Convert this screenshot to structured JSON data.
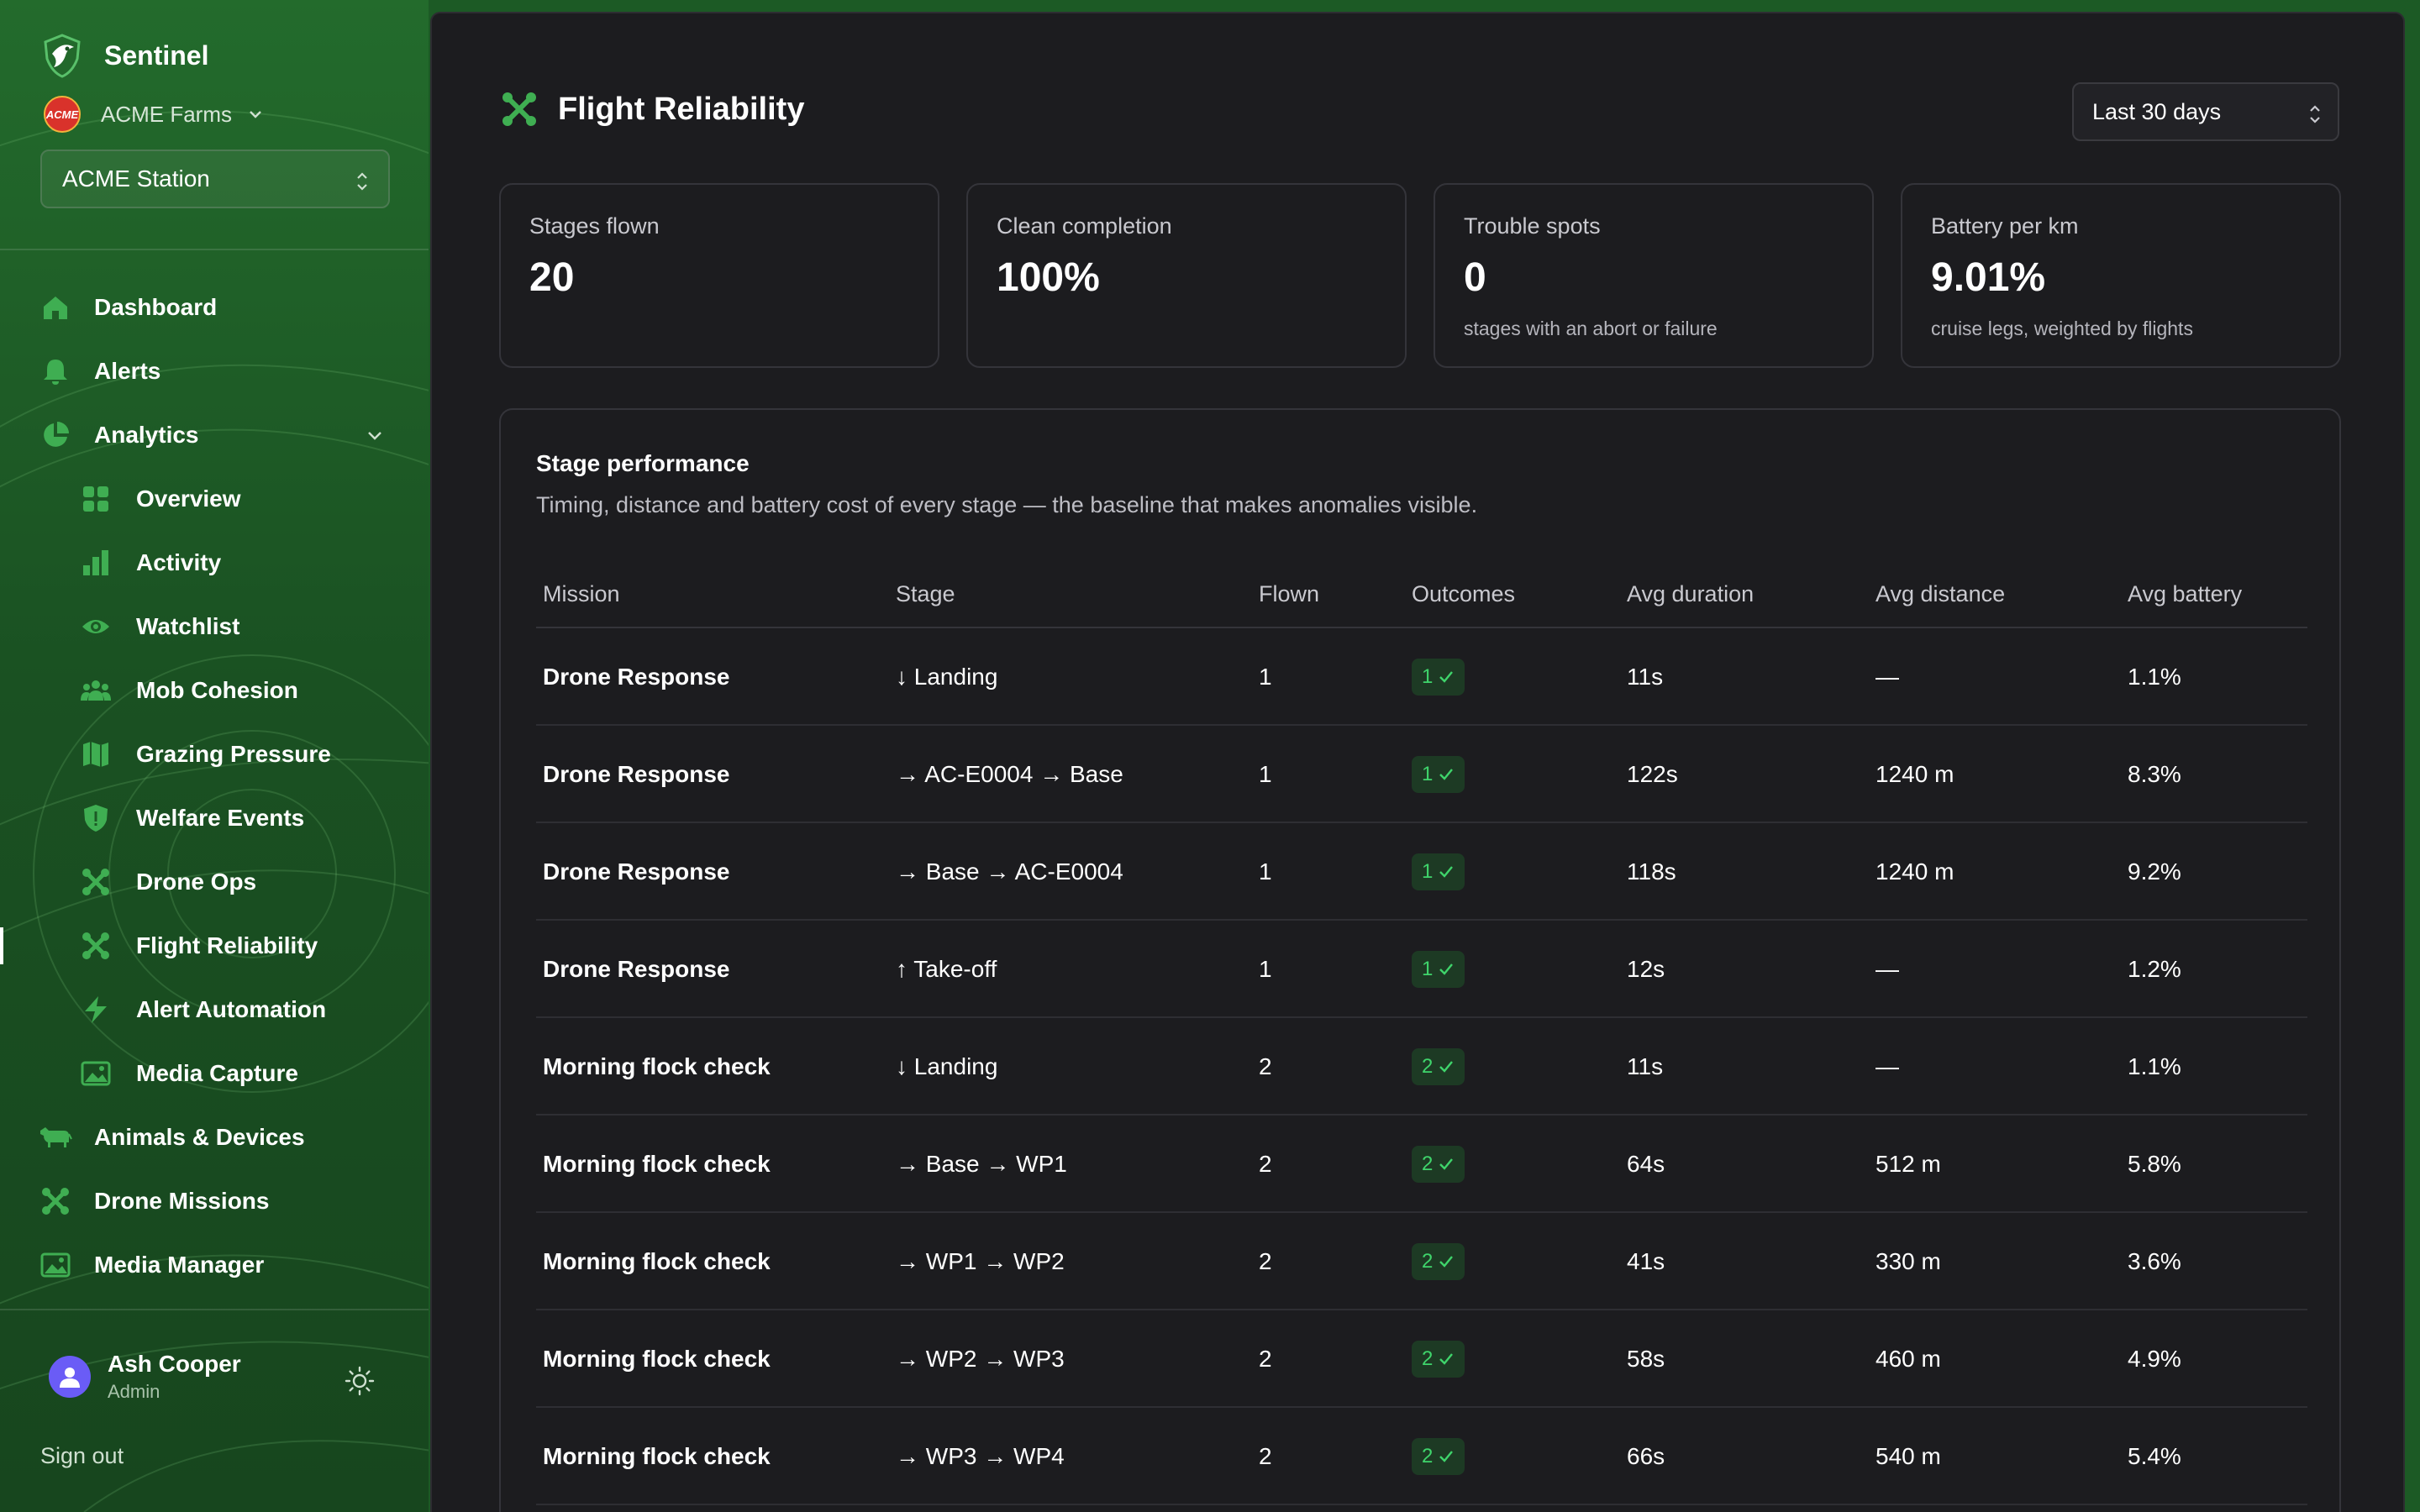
{
  "brand": {
    "name": "Sentinel"
  },
  "org": {
    "name": "ACME Farms",
    "logo_text": "ACME"
  },
  "station": {
    "selected": "ACME Station"
  },
  "nav": {
    "dashboard": "Dashboard",
    "alerts": "Alerts",
    "analytics": "Analytics",
    "overview": "Overview",
    "activity": "Activity",
    "watchlist": "Watchlist",
    "mob_cohesion": "Mob Cohesion",
    "grazing_pressure": "Grazing Pressure",
    "welfare_events": "Welfare Events",
    "drone_ops": "Drone Ops",
    "flight_reliability": "Flight Reliability",
    "alert_automation": "Alert Automation",
    "media_capture": "Media Capture",
    "animals_devices": "Animals & Devices",
    "drone_missions": "Drone Missions",
    "media_manager": "Media Manager",
    "active_item": "Flight Reliability"
  },
  "user": {
    "name": "Ash Cooper",
    "role": "Admin",
    "sign_out": "Sign out"
  },
  "page": {
    "title": "Flight Reliability",
    "range": "Last 30 days"
  },
  "stats": [
    {
      "label": "Stages flown",
      "value": "20",
      "sub": ""
    },
    {
      "label": "Clean completion",
      "value": "100%",
      "sub": ""
    },
    {
      "label": "Trouble spots",
      "value": "0",
      "sub": "stages with an abort or failure"
    },
    {
      "label": "Battery per km",
      "value": "9.01%",
      "sub": "cruise legs, weighted by flights"
    }
  ],
  "panel": {
    "title": "Stage performance",
    "description": "Timing, distance and battery cost of every stage — the baseline that makes anomalies visible."
  },
  "table": {
    "columns": [
      "Mission",
      "Stage",
      "Flown",
      "Outcomes",
      "Avg duration",
      "Avg distance",
      "Avg battery"
    ],
    "rows": [
      {
        "mission": "Drone Response",
        "stage": "↓ Landing",
        "flown": "1",
        "outcome": "1",
        "duration": "11s",
        "distance": "—",
        "battery": "1.1%"
      },
      {
        "mission": "Drone Response",
        "stage": "→ AC-E0004 → Base",
        "flown": "1",
        "outcome": "1",
        "duration": "122s",
        "distance": "1240 m",
        "battery": "8.3%"
      },
      {
        "mission": "Drone Response",
        "stage": "→ Base → AC-E0004",
        "flown": "1",
        "outcome": "1",
        "duration": "118s",
        "distance": "1240 m",
        "battery": "9.2%"
      },
      {
        "mission": "Drone Response",
        "stage": "↑ Take-off",
        "flown": "1",
        "outcome": "1",
        "duration": "12s",
        "distance": "—",
        "battery": "1.2%"
      },
      {
        "mission": "Morning flock check",
        "stage": "↓ Landing",
        "flown": "2",
        "outcome": "2",
        "duration": "11s",
        "distance": "—",
        "battery": "1.1%"
      },
      {
        "mission": "Morning flock check",
        "stage": "→ Base → WP1",
        "flown": "2",
        "outcome": "2",
        "duration": "64s",
        "distance": "512 m",
        "battery": "5.8%"
      },
      {
        "mission": "Morning flock check",
        "stage": "→ WP1 → WP2",
        "flown": "2",
        "outcome": "2",
        "duration": "41s",
        "distance": "330 m",
        "battery": "3.6%"
      },
      {
        "mission": "Morning flock check",
        "stage": "→ WP2 → WP3",
        "flown": "2",
        "outcome": "2",
        "duration": "58s",
        "distance": "460 m",
        "battery": "4.9%"
      },
      {
        "mission": "Morning flock check",
        "stage": "→ WP3 → WP4",
        "flown": "2",
        "outcome": "2",
        "duration": "66s",
        "distance": "540 m",
        "battery": "5.4%"
      }
    ]
  },
  "colors": {
    "accent_green": "#3fd46b",
    "sidebar_green": "#1c5a25",
    "surface": "#1c1c1f",
    "avatar": "#6a5cf6",
    "org_logo": "#d9322b"
  },
  "icons": {
    "brand": "bird-shield-icon",
    "page": "drone-icon",
    "outcome_check": "check-icon"
  }
}
